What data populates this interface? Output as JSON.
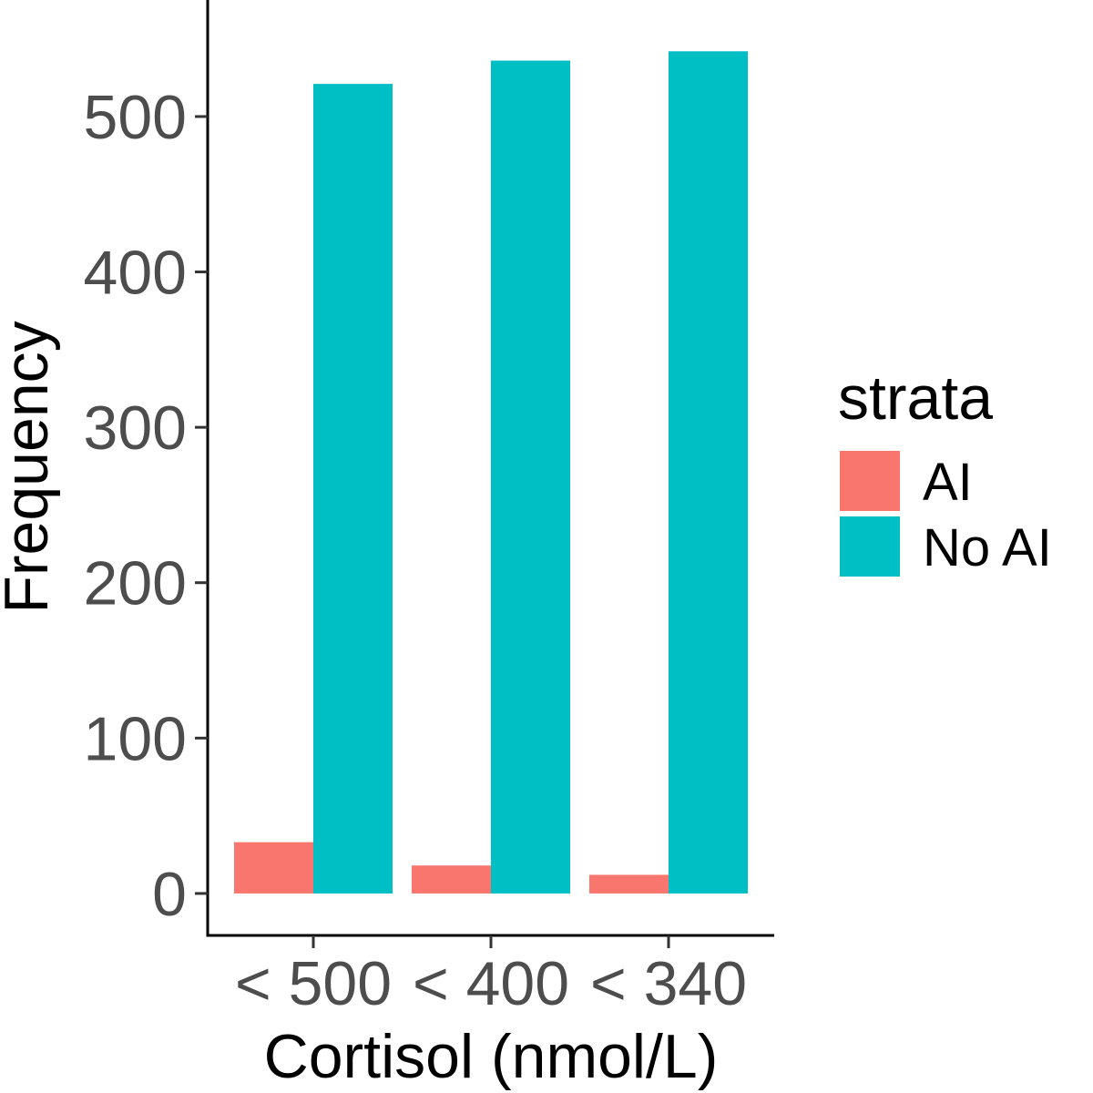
{
  "chart_data": {
    "type": "bar",
    "xlabel": "Cortisol (nmol/L)",
    "ylabel": "Frequency",
    "categories": [
      "< 500",
      "< 400",
      "< 340"
    ],
    "series": [
      {
        "name": "AI",
        "values": [
          33,
          18,
          12
        ],
        "color": "#F8766D"
      },
      {
        "name": "No AI",
        "values": [
          521,
          536,
          542
        ],
        "color": "#00BFC4"
      }
    ],
    "ylim": [
      -27,
      575
    ],
    "yticks": [
      0,
      100,
      200,
      300,
      400,
      500
    ],
    "grid": false,
    "legend": {
      "title": "strata",
      "placement": "right"
    }
  }
}
